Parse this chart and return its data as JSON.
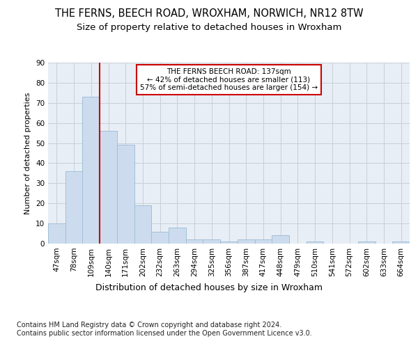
{
  "title": "THE FERNS, BEECH ROAD, WROXHAM, NORWICH, NR12 8TW",
  "subtitle": "Size of property relative to detached houses in Wroxham",
  "xlabel": "Distribution of detached houses by size in Wroxham",
  "ylabel": "Number of detached properties",
  "bar_values": [
    10,
    36,
    73,
    56,
    49,
    19,
    6,
    8,
    2,
    2,
    1,
    2,
    2,
    4,
    0,
    1,
    0,
    0,
    1,
    0,
    1
  ],
  "bin_labels": [
    "47sqm",
    "78sqm",
    "109sqm",
    "140sqm",
    "171sqm",
    "202sqm",
    "232sqm",
    "263sqm",
    "294sqm",
    "325sqm",
    "356sqm",
    "387sqm",
    "417sqm",
    "448sqm",
    "479sqm",
    "510sqm",
    "541sqm",
    "572sqm",
    "602sqm",
    "633sqm",
    "664sqm"
  ],
  "bar_color": "#ccdcee",
  "bar_edge_color": "#a0bfd8",
  "grid_color": "#c8cfd8",
  "bg_color": "#e8eef5",
  "vline_color": "#cc0000",
  "annotation_text": "THE FERNS BEECH ROAD: 137sqm\n← 42% of detached houses are smaller (113)\n57% of semi-detached houses are larger (154) →",
  "annotation_box_color": "#cc0000",
  "ylim": [
    0,
    90
  ],
  "yticks": [
    0,
    10,
    20,
    30,
    40,
    50,
    60,
    70,
    80,
    90
  ],
  "footer": "Contains HM Land Registry data © Crown copyright and database right 2024.\nContains public sector information licensed under the Open Government Licence v3.0.",
  "title_fontsize": 10.5,
  "subtitle_fontsize": 9.5,
  "xlabel_fontsize": 9,
  "ylabel_fontsize": 8,
  "tick_fontsize": 7.5,
  "footer_fontsize": 7
}
